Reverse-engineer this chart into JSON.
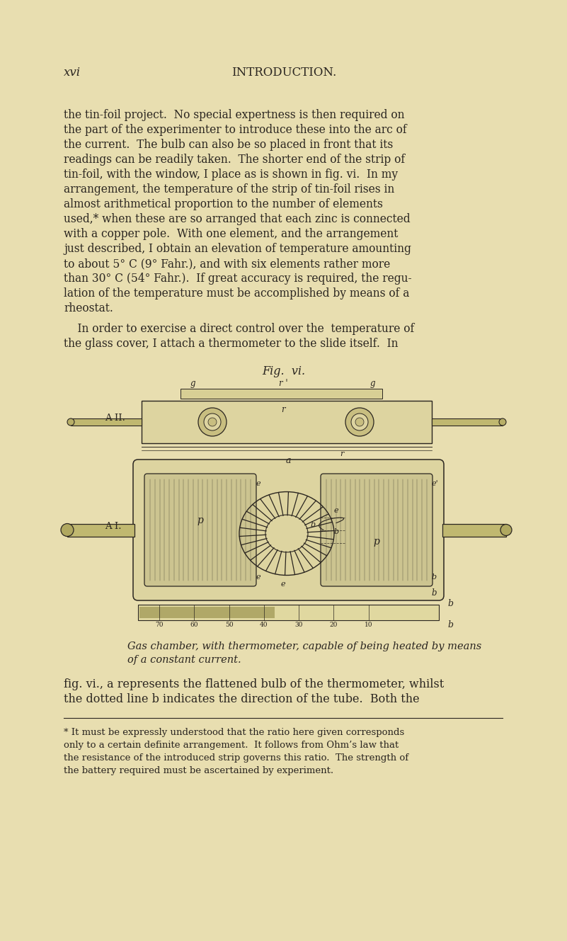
{
  "bg_color": "#e8deb0",
  "text_color": "#2a2520",
  "header_left": "xvi",
  "header_center": "INTRODUCTION.",
  "fig_title": "Fig.  vi.",
  "caption_line1": "Gas chamber, with thermometer, capable of being heated by means",
  "caption_line2": "of a constant current.",
  "body2_line1": "fig. vi., a represents the flattened bulb of the thermometer, whilst",
  "body2_line2": "the dotted line b indicates the direction of the tube.  Both the",
  "footnote_line1": "* It must be expressly understood that the ratio here given corresponds",
  "footnote_line2": "only to a certain definite arrangement.  It follows from Ohm’s law that",
  "footnote_line3": "the resistance of the introduced strip governs this ratio.  The strength of",
  "footnote_line4": "the battery required must be ascertained by experiment.",
  "para1": [
    "the tin-foil project.  No special expertness is then required on",
    "the part of the experimenter to introduce these into the arc of",
    "the current.  The bulb can also be so placed in front that its",
    "readings can be readily taken.  The shorter end of the strip of",
    "tin-foil, with the window, I place as is shown in fig. vi.  In my",
    "arrangement, the temperature of the strip of tin-foil rises in",
    "almost arithmetical proportion to the number of elements",
    "used,* when these are so arranged that each zinc is connected",
    "with a copper pole.  With one element, and the arrangement",
    "just described, I obtain an elevation of temperature amounting",
    "to about 5° C (9° Fahr.), and with six elements rather more",
    "than 30° C (54° Fahr.).  If great accuracy is required, the regu-",
    "lation of the temperature must be accomplished by means of a",
    "rheostat."
  ],
  "para2": [
    "    In order to exercise a direct control over the  temperature of",
    "the glass cover, I attach a thermometer to the slide itself.  In"
  ]
}
